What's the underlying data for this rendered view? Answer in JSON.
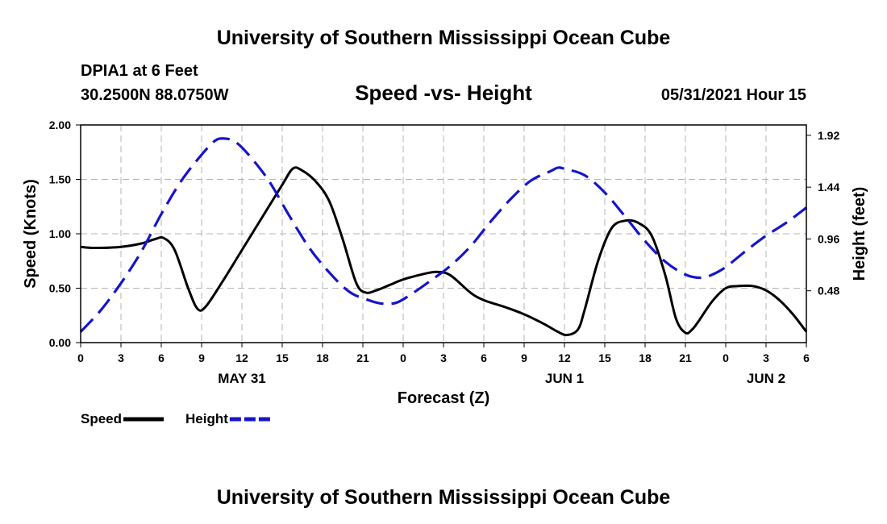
{
  "header": {
    "title": "University of Southern Mississippi Ocean Cube",
    "station": "DPIA1 at 6 Feet",
    "coords": "30.2500N  88.0750W",
    "plot_title": "Speed -vs- Height",
    "datetime": "05/31/2021 Hour 15"
  },
  "footer": {
    "title": "University of Southern Mississippi Ocean Cube"
  },
  "colors": {
    "speed": "#000000",
    "height": "#1515cc",
    "grid": "#b4b4b4"
  },
  "chart_data": {
    "type": "line",
    "xlabel": "Forecast (Z)",
    "ylabel": "Speed (Knots)",
    "y2label": "Height (feet)",
    "xlim": [
      0,
      54
    ],
    "ylim": [
      0,
      2.0
    ],
    "y2lim": [
      0,
      2.016
    ],
    "x_ticks": [
      0,
      3,
      6,
      9,
      12,
      15,
      18,
      21,
      24,
      27,
      30,
      33,
      36,
      39,
      42,
      45,
      48,
      51,
      54
    ],
    "x_tick_labels": [
      "0",
      "3",
      "6",
      "9",
      "12",
      "15",
      "18",
      "21",
      "0",
      "3",
      "6",
      "9",
      "12",
      "15",
      "18",
      "21",
      "0",
      "3",
      "6"
    ],
    "y_ticks": [
      0,
      0.5,
      1.0,
      1.5,
      2.0
    ],
    "y_tick_labels": [
      "0.00",
      "0.50",
      "1.00",
      "1.50",
      "2.00"
    ],
    "y2_ticks": [
      0.48,
      0.96,
      1.44,
      1.92
    ],
    "y2_tick_labels": [
      "0.48",
      "0.96",
      "1.44",
      "1.92"
    ],
    "date_labels": [
      {
        "x": 12,
        "label": "MAY 31"
      },
      {
        "x": 36,
        "label": "JUN 1"
      },
      {
        "x": 51,
        "label": "JUN 2"
      }
    ],
    "grid": true,
    "legend": [
      {
        "label": "Speed",
        "style": "solid"
      },
      {
        "label": "Height",
        "style": "dashed"
      }
    ],
    "series": [
      {
        "name": "Speed",
        "axis": "left",
        "x": [
          0,
          1,
          3,
          4.5,
          5.5,
          6.2,
          7,
          8,
          8.7,
          9.3,
          10.5,
          12,
          13.5,
          15,
          15.8,
          16.5,
          17.5,
          18.5,
          19.5,
          20.5,
          21.2,
          22,
          23,
          24,
          25.5,
          26.5,
          27.5,
          29,
          30,
          31.5,
          33,
          34.5,
          35.5,
          36.2,
          37,
          37.5,
          38.5,
          39.5,
          40.5,
          41.5,
          42.5,
          43.5,
          44.3,
          45,
          45.5,
          46,
          47,
          48,
          49,
          50,
          51,
          52,
          53,
          54
        ],
        "values": [
          0.88,
          0.87,
          0.88,
          0.91,
          0.95,
          0.96,
          0.85,
          0.5,
          0.31,
          0.33,
          0.55,
          0.85,
          1.15,
          1.45,
          1.6,
          1.58,
          1.48,
          1.3,
          0.95,
          0.55,
          0.46,
          0.48,
          0.53,
          0.58,
          0.63,
          0.65,
          0.62,
          0.46,
          0.39,
          0.33,
          0.26,
          0.17,
          0.1,
          0.07,
          0.12,
          0.3,
          0.75,
          1.05,
          1.12,
          1.1,
          0.98,
          0.62,
          0.22,
          0.09,
          0.12,
          0.2,
          0.38,
          0.5,
          0.52,
          0.52,
          0.48,
          0.39,
          0.26,
          0.1
        ]
      },
      {
        "name": "Height",
        "axis": "right",
        "x": [
          0,
          1.5,
          3,
          4.5,
          6,
          7.5,
          9,
          10,
          10.7,
          11.5,
          12.5,
          14,
          15.5,
          17,
          18.5,
          20,
          21.5,
          22.5,
          23.5,
          24.5,
          26,
          27.5,
          29,
          30.5,
          32,
          33.5,
          35,
          35.5,
          36,
          37.5,
          39,
          40.5,
          42,
          43.5,
          45,
          46.2,
          47,
          48,
          49.5,
          51,
          52.5,
          54
        ],
        "values": [
          0.1,
          0.3,
          0.55,
          0.84,
          1.19,
          1.5,
          1.74,
          1.87,
          1.89,
          1.86,
          1.74,
          1.5,
          1.18,
          0.88,
          0.65,
          0.47,
          0.39,
          0.36,
          0.37,
          0.44,
          0.57,
          0.71,
          0.89,
          1.12,
          1.33,
          1.5,
          1.59,
          1.62,
          1.61,
          1.55,
          1.39,
          1.17,
          0.94,
          0.75,
          0.63,
          0.6,
          0.63,
          0.7,
          0.85,
          0.99,
          1.11,
          1.25
        ]
      }
    ]
  }
}
